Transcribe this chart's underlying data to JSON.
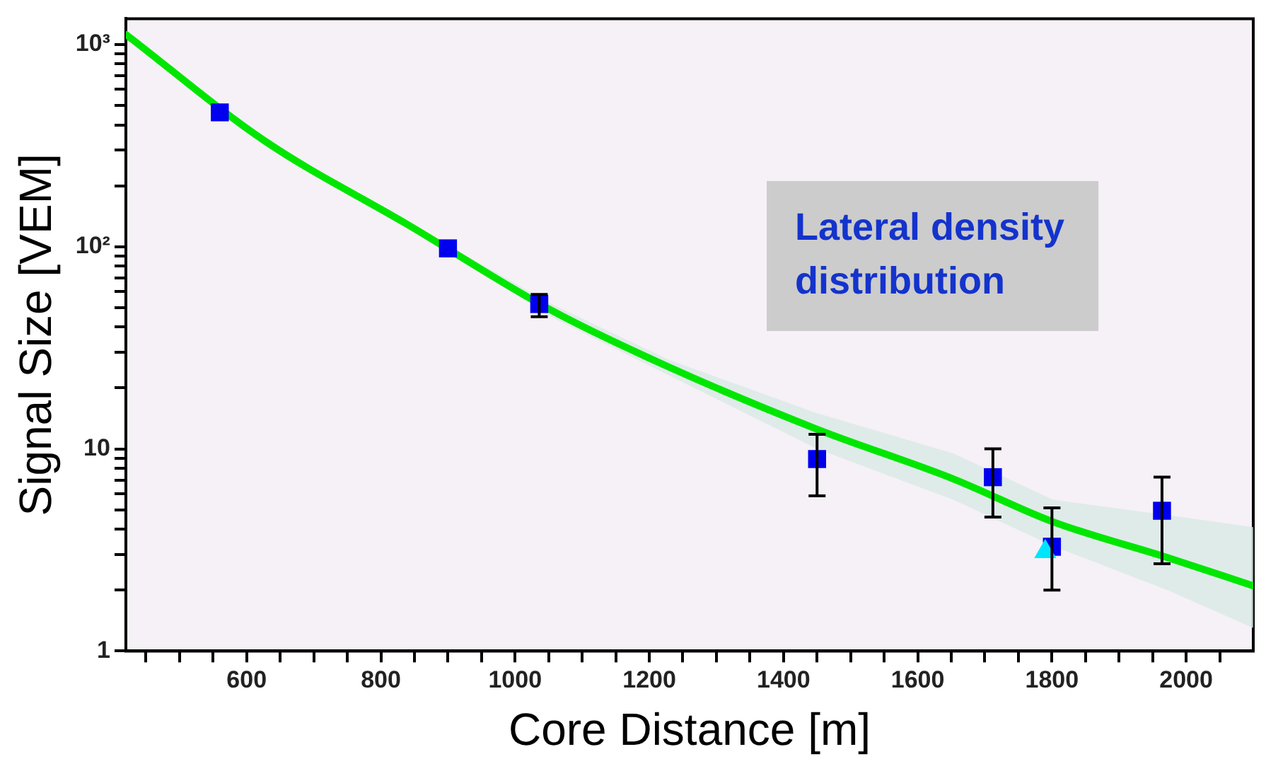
{
  "chart_data": {
    "type": "scatter",
    "xlabel": "Core Distance [m]",
    "ylabel": "Signal Size [VEM]",
    "annotations": [
      "Lateral density distribution"
    ],
    "log": "y",
    "grid": false,
    "xlim": [
      420,
      2100
    ],
    "xticks": [
      {
        "value": 450,
        "label": null
      },
      {
        "value": 500,
        "label": null
      },
      {
        "value": 550,
        "label": null
      },
      600,
      {
        "value": 650,
        "label": null
      },
      {
        "value": 700,
        "label": null
      },
      {
        "value": 750,
        "label": null
      },
      800,
      {
        "value": 850,
        "label": null
      },
      {
        "value": 900,
        "label": null
      },
      {
        "value": 950,
        "label": null
      },
      1000,
      {
        "value": 1050,
        "label": null
      },
      {
        "value": 1100,
        "label": null
      },
      {
        "value": 1150,
        "label": null
      },
      1200,
      {
        "value": 1250,
        "label": null
      },
      {
        "value": 1300,
        "label": null
      },
      {
        "value": 1350,
        "label": null
      },
      1400,
      {
        "value": 1450,
        "label": null
      },
      {
        "value": 1500,
        "label": null
      },
      {
        "value": 1550,
        "label": null
      },
      1600,
      {
        "value": 1650,
        "label": null
      },
      {
        "value": 1700,
        "label": null
      },
      {
        "value": 1750,
        "label": null
      },
      1800,
      {
        "value": 1850,
        "label": null
      },
      {
        "value": 1900,
        "label": null
      },
      {
        "value": 1950,
        "label": null
      },
      2000,
      {
        "value": 2050,
        "label": null
      }
    ],
    "ylim": [
      1,
      1340
    ],
    "yticks": [
      1,
      {
        "value": 2,
        "label": null
      },
      {
        "value": 3,
        "label": null
      },
      {
        "value": 4,
        "label": null
      },
      {
        "value": 5,
        "label": null
      },
      {
        "value": 6,
        "label": null
      },
      {
        "value": 7,
        "label": null
      },
      {
        "value": 8,
        "label": null
      },
      {
        "value": 9,
        "label": null
      },
      10,
      {
        "value": 20,
        "label": null
      },
      {
        "value": 30,
        "label": null
      },
      {
        "value": 40,
        "label": null
      },
      {
        "value": 50,
        "label": null
      },
      {
        "value": 60,
        "label": null
      },
      {
        "value": 70,
        "label": null
      },
      {
        "value": 80,
        "label": null
      },
      {
        "value": 90,
        "label": null
      },
      {
        "value": 100,
        "label": "10²"
      },
      {
        "value": 200,
        "label": null
      },
      {
        "value": 300,
        "label": null
      },
      {
        "value": 400,
        "label": null
      },
      {
        "value": 500,
        "label": null
      },
      {
        "value": 600,
        "label": null
      },
      {
        "value": 700,
        "label": null
      },
      {
        "value": 800,
        "label": null
      },
      {
        "value": 900,
        "label": null
      },
      {
        "value": 1000,
        "label": "10³"
      }
    ],
    "series": [
      {
        "type": "line",
        "color": "#00e600",
        "x": [
          420,
          627,
          839,
          1054,
          1230,
          1450,
          1653,
          1802,
          1972,
          2100
        ],
        "values": [
          1120,
          333,
          129,
          48.4,
          25.3,
          12.5,
          7.1,
          4.35,
          2.9,
          2.1
        ],
        "lower": [
          1110,
          326,
          125,
          45,
          23,
          10,
          5.6,
          3.3,
          2.0,
          1.3
        ],
        "upper": [
          1130,
          340,
          133,
          52,
          27.5,
          15,
          9.5,
          5.6,
          4.7,
          4.1
        ]
      },
      {
        "color": "#0000ee",
        "marker": "square",
        "x": [
          560,
          900,
          1036,
          1450,
          1712,
          1800,
          1964
        ],
        "values": [
          461,
          98,
          52,
          8.9,
          7.24,
          3.28,
          4.94
        ],
        "errors": [
          null,
          null,
          [
            45,
            58
          ],
          [
            5.85,
            11.8
          ],
          [
            4.6,
            10
          ],
          [
            2.0,
            5.1
          ],
          [
            2.7,
            7.24
          ]
        ]
      },
      {
        "color": "#00e5ff",
        "marker": "triangle",
        "x": [
          1790
        ],
        "values": [
          3.1
        ]
      }
    ]
  }
}
